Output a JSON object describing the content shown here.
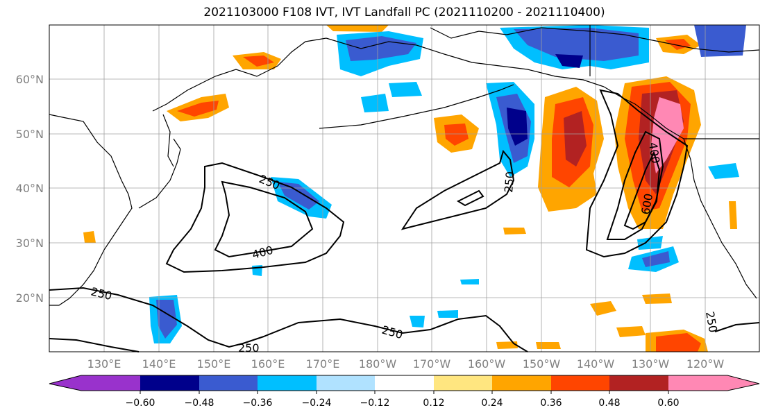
{
  "title": "2021103000 F108 IVT, IVT Landfall PC (2021110200 - 2021110400)",
  "lat_ticks": [
    "60°N",
    "50°N",
    "40°N",
    "30°N",
    "20°N"
  ],
  "lon_ticks": [
    "130°E",
    "140°E",
    "150°E",
    "160°E",
    "170°E",
    "180°W",
    "170°W",
    "160°W",
    "150°W",
    "140°W",
    "130°W",
    "120°W"
  ],
  "contour_labels": [
    "250",
    "400",
    "250",
    "250",
    "250",
    "250",
    "400",
    "600",
    "250"
  ],
  "colorbar": {
    "ticks": [
      "−0.60",
      "−0.48",
      "−0.36",
      "−0.24",
      "−0.12",
      "0.12",
      "0.24",
      "0.36",
      "0.48",
      "0.60"
    ],
    "colors": [
      "#9932cc",
      "#00008b",
      "#3a5bd0",
      "#00bfff",
      "#b0e2ff",
      "#ffffff",
      "#ffe680",
      "#ffa500",
      "#ff4500",
      "#b22222",
      "#ff88b4",
      "#ff88b4"
    ]
  }
}
